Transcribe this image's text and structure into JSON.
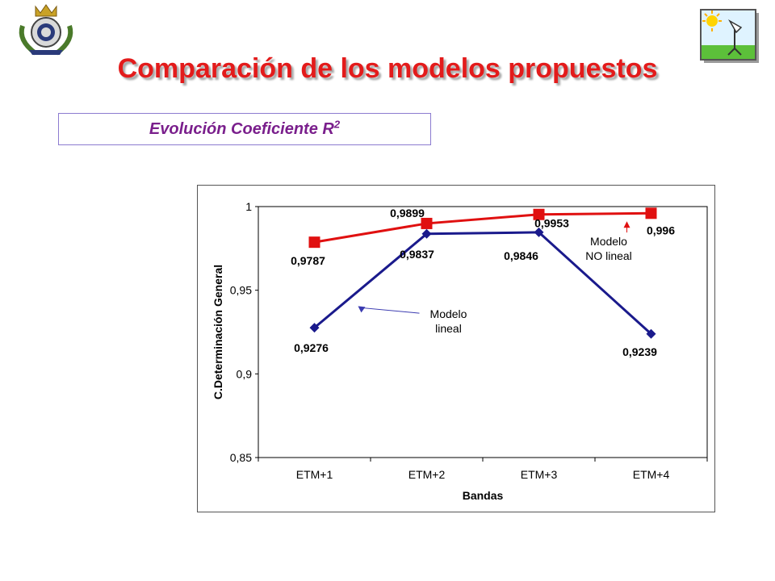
{
  "slide": {
    "title": "Comparación de los modelos propuestos",
    "subtitle_text": "Evolución Coeficiente R",
    "subtitle_superscript": "2"
  },
  "logos": {
    "left": "crest-emblem",
    "right": "sun-and-antenna-icon"
  },
  "colors": {
    "title": "#e31b1b",
    "subtitle": "#7a1f8c",
    "nonlinear": "#e01010",
    "linear": "#1a1a8c"
  },
  "chart_data": {
    "type": "line",
    "categories": [
      "ETM+1",
      "ETM+2",
      "ETM+3",
      "ETM+4"
    ],
    "series": [
      {
        "name": "Modelo NO lineal",
        "color": "#e01010",
        "marker": "square",
        "values": [
          0.9787,
          0.9899,
          0.9953,
          0.996
        ],
        "labels": [
          "0,9787",
          "0,9899",
          "0,9953",
          "0,996"
        ]
      },
      {
        "name": "Modelo lineal",
        "color": "#1a1a8c",
        "marker": "diamond",
        "values": [
          0.9276,
          0.9837,
          0.9846,
          0.9239
        ],
        "labels": [
          "0,9276",
          "0,9837",
          "0,9846",
          "0,9239"
        ]
      }
    ],
    "xlabel": "Bandas",
    "ylabel": "C.Determinación General",
    "ylim": [
      0.85,
      1
    ],
    "yticks": [
      1,
      0.95,
      0.9,
      0.85
    ],
    "ytick_labels": [
      "1",
      "0,95",
      "0,9",
      "0,85"
    ],
    "annotations": [
      {
        "lines": [
          "Modelo",
          "NO lineal"
        ],
        "series": "Modelo NO lineal"
      },
      {
        "lines": [
          "Modelo",
          "lineal"
        ],
        "series": "Modelo lineal"
      }
    ],
    "grid": false,
    "legend": "none"
  }
}
